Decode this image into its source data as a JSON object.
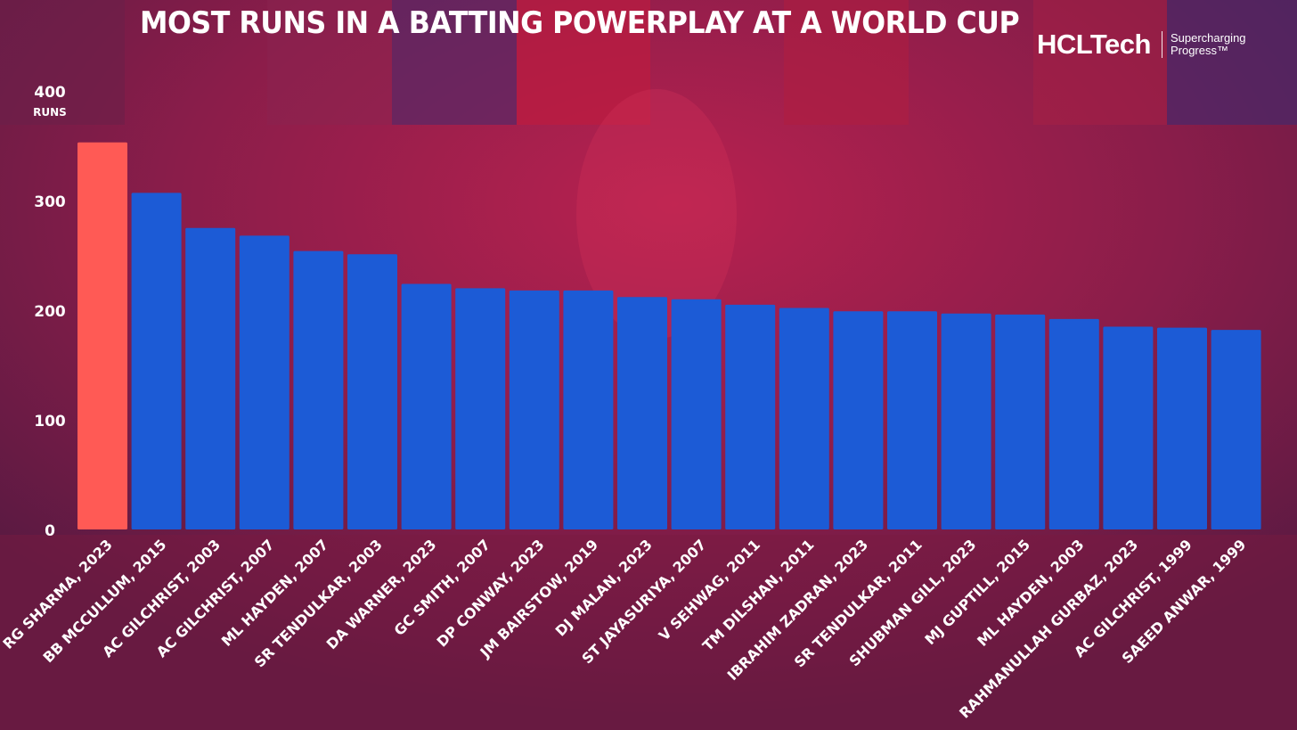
{
  "header": {
    "title": "MOST RUNS IN A BATTING POWERPLAY AT A WORLD CUP"
  },
  "brand": {
    "name": "HCLTech",
    "tagline_line1": "Supercharging",
    "tagline_line2": "Progress™"
  },
  "colors": {
    "highlight_bar": "#ff5a55",
    "bar": "#1c5bd6",
    "text": "#ffffff",
    "background": "#6e1a45"
  },
  "chart_data": {
    "type": "bar",
    "title": "MOST RUNS IN A BATTING POWERPLAY AT A WORLD CUP",
    "ylabel": "RUNS",
    "ylim": [
      0,
      400
    ],
    "yticks": [
      0,
      100,
      200,
      300,
      400
    ],
    "grid": false,
    "highlight_index": 0,
    "categories": [
      "RG SHARMA, 2023",
      "BB MCCULLUM, 2015",
      "AC GILCHRIST, 2003",
      "AC GILCHRIST, 2007",
      "ML HAYDEN, 2007",
      "SR TENDULKAR, 2003",
      "DA WARNER, 2023",
      "GC SMITH, 2007",
      "DP CONWAY, 2023",
      "JM BAIRSTOW, 2019",
      "DJ MALAN, 2023",
      "ST JAYASURIYA, 2007",
      "V SEHWAG, 2011",
      "TM DILSHAN, 2011",
      "IBRAHIM ZADRAN, 2023",
      "SR TENDULKAR, 2011",
      "SHUBMAN GILL, 2023",
      "MJ GUPTILL, 2015",
      "ML HAYDEN, 2003",
      "RAHMANULLAH GURBAZ, 2023",
      "AC GILCHRIST, 1999",
      "SAEED ANWAR, 1999"
    ],
    "values": [
      353,
      307,
      275,
      268,
      254,
      251,
      224,
      220,
      218,
      218,
      212,
      210,
      205,
      202,
      199,
      199,
      197,
      196,
      192,
      185,
      184,
      182
    ]
  }
}
